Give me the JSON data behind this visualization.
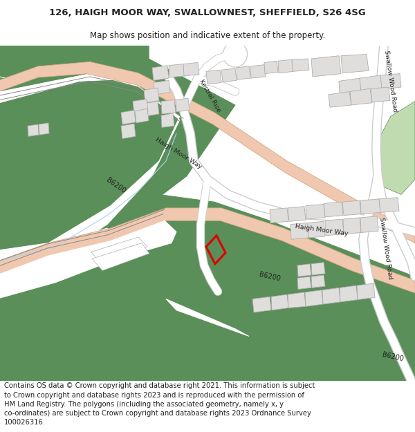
{
  "title": "126, HAIGH MOOR WAY, SWALLOWNEST, SHEFFIELD, S26 4SG",
  "subtitle": "Map shows position and indicative extent of the property.",
  "footer": "Contains OS data © Crown copyright and database right 2021. This information is subject\nto Crown copyright and database rights 2023 and is reproduced with the permission of\nHM Land Registry. The polygons (including the associated geometry, namely x, y\nco-ordinates) are subject to Crown copyright and database rights 2023 Ordnance Survey\n100026316.",
  "title_fontsize": 9.5,
  "subtitle_fontsize": 8.5,
  "footer_fontsize": 7.2,
  "bg_color": "#ffffff",
  "map_bg": "#f7f5f2",
  "road_salmon": "#f0c8b0",
  "road_edge": "#d4a882",
  "green": "#5a8f5a",
  "green_light": "#c0dbb0",
  "building_fill": "#e0dedd",
  "building_edge": "#b0aeac",
  "red": "#dd0000",
  "text_dark": "#222222"
}
